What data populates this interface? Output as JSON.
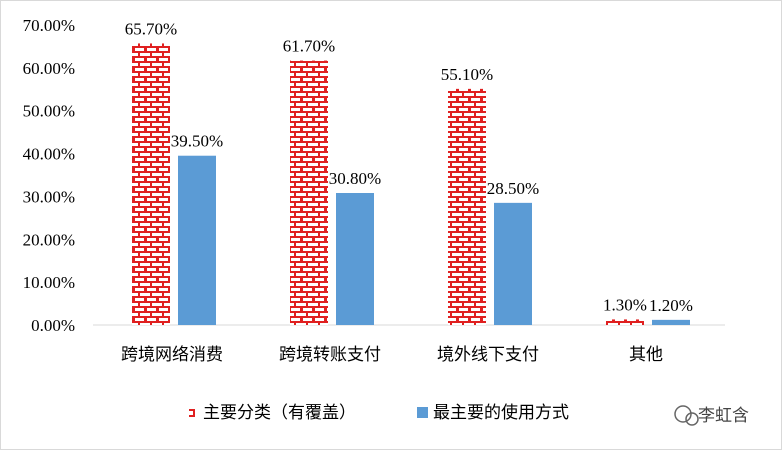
{
  "chart_data": {
    "type": "bar",
    "categories": [
      "跨境网络消费",
      "跨境转账支付",
      "境外线下支付",
      "其他"
    ],
    "series": [
      {
        "name": "主要分类（有覆盖）",
        "values": [
          65.7,
          61.7,
          55.1,
          1.3
        ],
        "labels": [
          "65.70%",
          "61.70%",
          "55.10%",
          "1.30%"
        ],
        "color": "#e02020",
        "pattern": "brick"
      },
      {
        "name": "最主要的使用方式",
        "values": [
          39.5,
          30.8,
          28.5,
          1.2
        ],
        "labels": [
          "39.50%",
          "30.80%",
          "28.50%",
          "1.20%"
        ],
        "color": "#5b9bd5",
        "pattern": "solid"
      }
    ],
    "ylim": [
      0,
      70
    ],
    "yticks": [
      "0.00%",
      "10.00%",
      "20.00%",
      "30.00%",
      "40.00%",
      "50.00%",
      "60.00%",
      "70.00%"
    ],
    "legend_position": "bottom",
    "grid": false
  },
  "watermark": {
    "text": "李虹含",
    "icon": "wechat-icon"
  }
}
